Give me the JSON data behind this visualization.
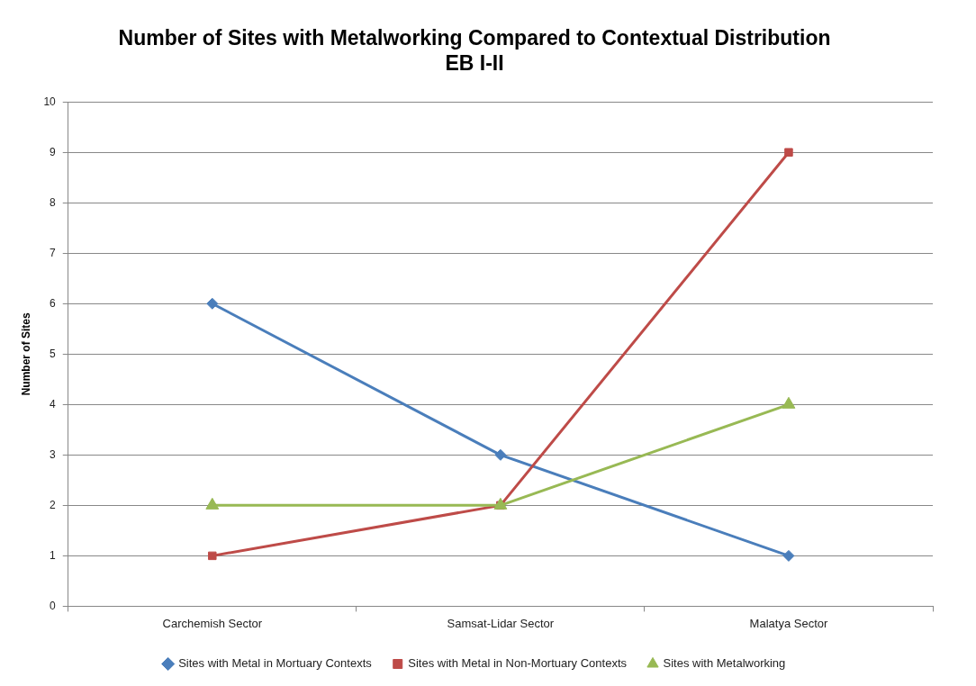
{
  "chart_data": {
    "type": "line",
    "title": [
      "Number of Sites with Metalworking Compared to Contextual Distribution",
      "EB I-II"
    ],
    "ylabel": "Number of Sites",
    "categories": [
      "Carchemish Sector",
      "Samsat-Lidar Sector",
      "Malatya Sector"
    ],
    "series": [
      {
        "name": "Sites with Metal in Mortuary Contexts",
        "color": "#4a7ebb",
        "marker": "diamond",
        "values": [
          6,
          3,
          1
        ]
      },
      {
        "name": "Sites with Metal in Non-Mortuary Contexts",
        "color": "#be4b48",
        "marker": "square",
        "values": [
          1,
          2,
          9
        ]
      },
      {
        "name": "Sites with Metalworking",
        "color": "#98b954",
        "marker": "triangle",
        "values": [
          2,
          2,
          4
        ]
      }
    ],
    "ylim": [
      0,
      10
    ],
    "yticks": [
      0,
      1,
      2,
      3,
      4,
      5,
      6,
      7,
      8,
      9,
      10
    ],
    "grid": "y",
    "legend": "bottom",
    "line_style": "solid"
  }
}
